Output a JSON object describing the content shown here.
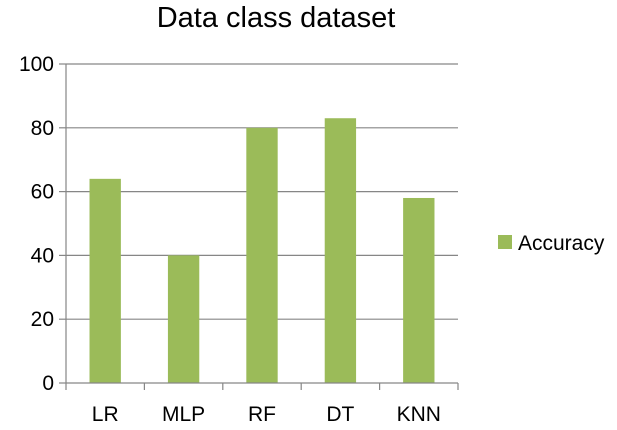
{
  "chart_data": {
    "type": "bar",
    "title": "Data class dataset",
    "categories": [
      "LR",
      "MLP",
      "RF",
      "DT",
      "KNN"
    ],
    "series": [
      {
        "name": "Accuracy",
        "values": [
          64,
          40,
          80,
          83,
          58
        ],
        "color": "#9BBB59"
      }
    ],
    "ylim": [
      0,
      100
    ],
    "yticks": [
      "0",
      "20",
      "40",
      "60",
      "80",
      "100"
    ],
    "grid": true,
    "gridline_color": "#868686",
    "legend_position": "right"
  }
}
